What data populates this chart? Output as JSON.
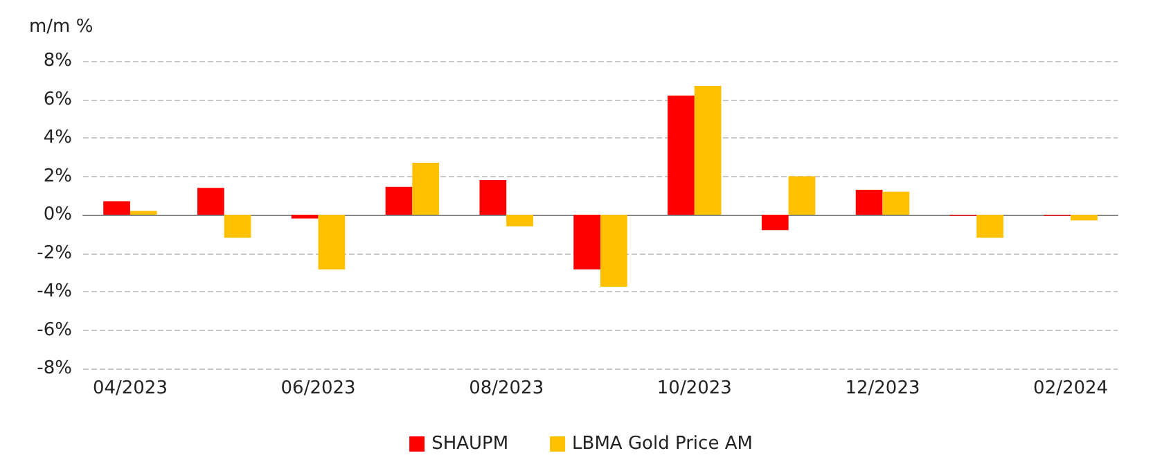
{
  "chart_data": {
    "type": "bar",
    "ylabel": "m/m %",
    "categories": [
      "04/2023",
      null,
      "06/2023",
      null,
      "08/2023",
      null,
      "10/2023",
      null,
      "12/2023",
      null,
      "02/2024"
    ],
    "series": [
      {
        "name": "SHAUPM",
        "color": "#ff0000",
        "values": [
          0.7,
          1.4,
          -0.2,
          1.45,
          1.8,
          -2.85,
          6.2,
          -0.8,
          1.3,
          -0.05,
          -0.05
        ]
      },
      {
        "name": "LBMA Gold Price AM",
        "color": "#ffc000",
        "values": [
          0.2,
          -1.2,
          -2.85,
          2.7,
          -0.6,
          -3.75,
          6.7,
          2.0,
          1.2,
          -1.2,
          -0.3
        ]
      }
    ],
    "ylim": [
      -8,
      8
    ],
    "yticks": [
      {
        "value": -8,
        "label": "-8%"
      },
      {
        "value": -6,
        "label": "-6%"
      },
      {
        "value": -4,
        "label": "-4%"
      },
      {
        "value": -2,
        "label": "-2%"
      },
      {
        "value": 0,
        "label": "0%"
      },
      {
        "value": 2,
        "label": "2%"
      },
      {
        "value": 4,
        "label": "4%"
      },
      {
        "value": 6,
        "label": "6%"
      },
      {
        "value": 8,
        "label": "8%"
      }
    ],
    "grid": "y",
    "legend": "bottom"
  }
}
